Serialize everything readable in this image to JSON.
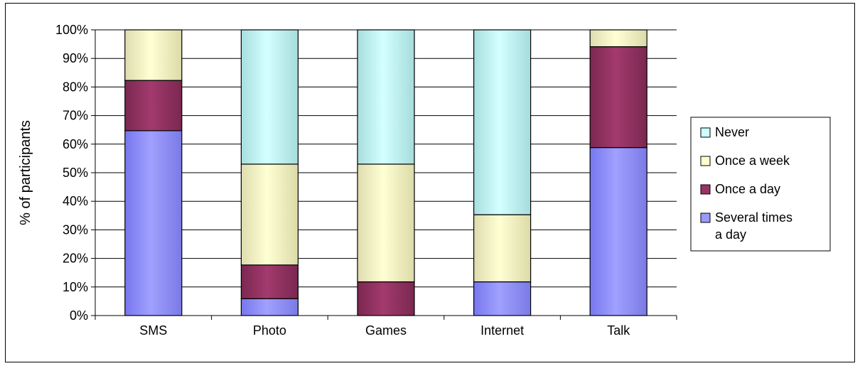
{
  "chart_data": {
    "type": "bar",
    "stacked": true,
    "normalized": true,
    "title": "",
    "xlabel": "",
    "ylabel": "% of participants",
    "ylim": [
      0,
      100
    ],
    "yticks": [
      "0%",
      "10%",
      "20%",
      "30%",
      "40%",
      "50%",
      "60%",
      "70%",
      "80%",
      "90%",
      "100%"
    ],
    "categories": [
      "SMS",
      "Photo",
      "Games",
      "Internet",
      "Talk"
    ],
    "series": [
      {
        "name": "Several times a day",
        "color": "#9999FF",
        "values": [
          64.7,
          5.9,
          0,
          11.8,
          58.8
        ]
      },
      {
        "name": "Once a day",
        "color": "#993366",
        "values": [
          17.6,
          11.8,
          11.8,
          0,
          35.3
        ]
      },
      {
        "name": "Once a week",
        "color": "#FFFFCC",
        "values": [
          17.7,
          35.3,
          41.2,
          23.5,
          5.9
        ]
      },
      {
        "name": "Never",
        "color": "#CCFFFF",
        "values": [
          0,
          47.0,
          47.0,
          64.7,
          0
        ]
      }
    ],
    "grid": true,
    "legend": {
      "position": "right",
      "entries": [
        "Never",
        "Once a week",
        "Once a day",
        "Several times a day"
      ]
    }
  }
}
